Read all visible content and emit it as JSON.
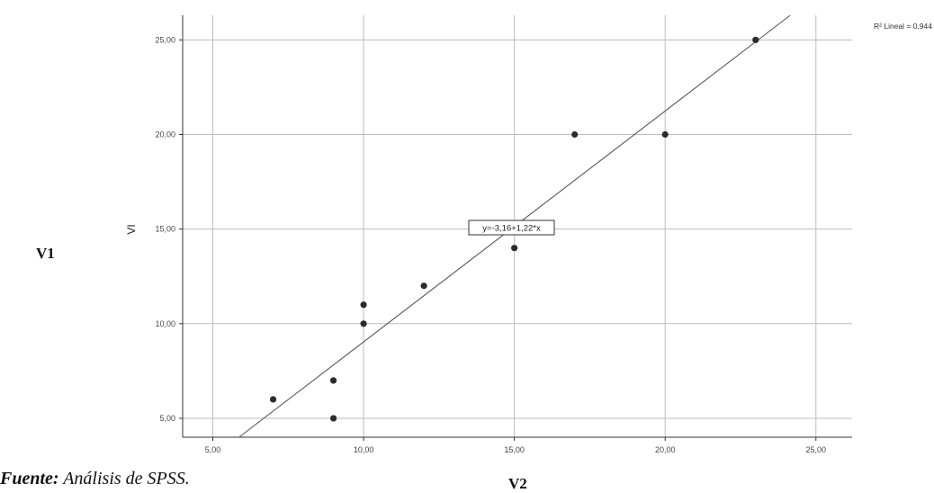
{
  "document": {
    "side_label": "V1",
    "bottom_label": "V2",
    "source_prefix": "Fuente:",
    "source_text": " Análisis de SPSS."
  },
  "chart_data": {
    "type": "scatter",
    "ylabel": "VI",
    "xlabel": "",
    "xlim": [
      4,
      26.2
    ],
    "ylim": [
      4,
      26.3
    ],
    "x_ticks": [
      5,
      10,
      15,
      20,
      25
    ],
    "y_ticks": [
      5,
      10,
      15,
      20,
      25
    ],
    "x_tick_labels": [
      "5,00",
      "10,00",
      "15,00",
      "20,00",
      "25,00"
    ],
    "y_tick_labels": [
      "5,00",
      "10,00",
      "15,00",
      "20,00",
      "25,00"
    ],
    "grid": true,
    "points": [
      {
        "x": 7,
        "y": 6
      },
      {
        "x": 9,
        "y": 7
      },
      {
        "x": 9,
        "y": 5
      },
      {
        "x": 10,
        "y": 10
      },
      {
        "x": 10,
        "y": 11
      },
      {
        "x": 12,
        "y": 12
      },
      {
        "x": 15,
        "y": 14
      },
      {
        "x": 17,
        "y": 20
      },
      {
        "x": 20,
        "y": 20
      },
      {
        "x": 23,
        "y": 25
      }
    ],
    "fit_line": {
      "intercept": -3.16,
      "slope": 1.22
    },
    "fit_label": "y=-3,16+1,22*x",
    "r2_label": "R² Lineal = 0,944",
    "colors": {
      "points": "#2b2b2b",
      "grid": "#bdbdbd",
      "axis": "#333333",
      "line": "#555555"
    }
  }
}
